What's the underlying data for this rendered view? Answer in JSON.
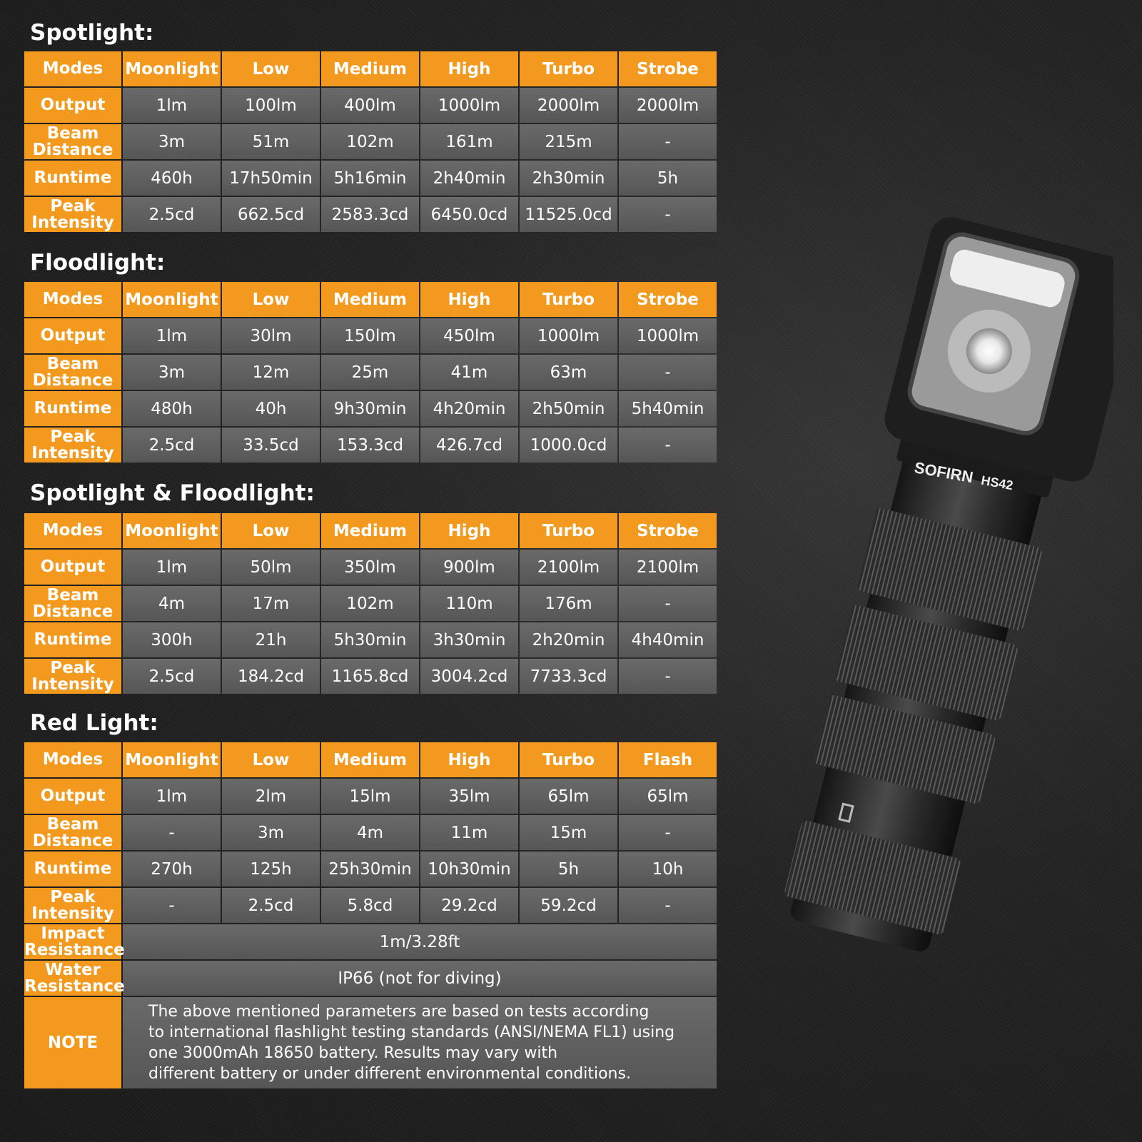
{
  "tables": [
    {
      "title": "Spotlight:",
      "header": [
        "Modes",
        "Moonlight",
        "Low",
        "Medium",
        "High",
        "Turbo",
        "Strobe"
      ],
      "rows": [
        {
          "label": "Output",
          "values": [
            "1lm",
            "100lm",
            "400lm",
            "1000lm",
            "2000lm",
            "2000lm"
          ]
        },
        {
          "label": "Beam Distance",
          "values": [
            "3m",
            "51m",
            "102m",
            "161m",
            "215m",
            "-"
          ]
        },
        {
          "label": "Runtime",
          "values": [
            "460h",
            "17h50min",
            "5h16min",
            "2h40min",
            "2h30min",
            "5h"
          ]
        },
        {
          "label": "Peak Intensity",
          "values": [
            "2.5cd",
            "662.5cd",
            "2583.3cd",
            "6450.0cd",
            "11525.0cd",
            "-"
          ]
        }
      ]
    },
    {
      "title": "Floodlight:",
      "header": [
        "Modes",
        "Moonlight",
        "Low",
        "Medium",
        "High",
        "Turbo",
        "Strobe"
      ],
      "rows": [
        {
          "label": "Output",
          "values": [
            "1lm",
            "30lm",
            "150lm",
            "450lm",
            "1000lm",
            "1000lm"
          ]
        },
        {
          "label": "Beam Distance",
          "values": [
            "3m",
            "12m",
            "25m",
            "41m",
            "63m",
            "-"
          ]
        },
        {
          "label": "Runtime",
          "values": [
            "480h",
            "40h",
            "9h30min",
            "4h20min",
            "2h50min",
            "5h40min"
          ]
        },
        {
          "label": "Peak Intensity",
          "values": [
            "2.5cd",
            "33.5cd",
            "153.3cd",
            "426.7cd",
            "1000.0cd",
            "-"
          ]
        }
      ]
    },
    {
      "title": "Spotlight & Floodlight:",
      "header": [
        "Modes",
        "Moonlight",
        "Low",
        "Medium",
        "High",
        "Turbo",
        "Strobe"
      ],
      "rows": [
        {
          "label": "Output",
          "values": [
            "1lm",
            "50lm",
            "350lm",
            "900lm",
            "2100lm",
            "2100lm"
          ]
        },
        {
          "label": "Beam Distance",
          "values": [
            "4m",
            "17m",
            "102m",
            "110m",
            "176m",
            "-"
          ]
        },
        {
          "label": "Runtime",
          "values": [
            "300h",
            "21h",
            "5h30min",
            "3h30min",
            "2h20min",
            "4h40min"
          ]
        },
        {
          "label": "Peak Intensity",
          "values": [
            "2.5cd",
            "184.2cd",
            "1165.8cd",
            "3004.2cd",
            "7733.3cd",
            "-"
          ]
        }
      ]
    },
    {
      "title": "Red Light:",
      "header": [
        "Modes",
        "Moonlight",
        "Low",
        "Medium",
        "High",
        "Turbo",
        "Flash"
      ],
      "rows": [
        {
          "label": "Output",
          "values": [
            "1lm",
            "2lm",
            "15lm",
            "35lm",
            "65lm",
            "65lm"
          ]
        },
        {
          "label": "Beam Distance",
          "values": [
            "-",
            "3m",
            "4m",
            "11m",
            "15m",
            "-"
          ]
        },
        {
          "label": "Runtime",
          "values": [
            "270h",
            "125h",
            "25h30min",
            "10h30min",
            "5h",
            "10h"
          ]
        },
        {
          "label": "Peak Intensity",
          "values": [
            "-",
            "2.5cd",
            "5.8cd",
            "29.2cd",
            "59.2cd",
            "-"
          ]
        }
      ],
      "extra": [
        {
          "label": "Impact Resistance",
          "value": "1m/3.28ft"
        },
        {
          "label": "Water Resistance",
          "value": "IP66 (not for diving)"
        }
      ],
      "note": {
        "label": "NOTE",
        "lines": [
          "The above mentioned parameters are based on tests according",
          "to international flashlight testing standards (ANSI/NEMA FL1) using",
          "one 3000mAh 18650 battery. Results may vary with",
          "different battery or under different environmental conditions."
        ]
      }
    }
  ],
  "product": {
    "brand": "SOFIRN",
    "model": "HS42"
  },
  "colors": {
    "header": "#f39a1e",
    "cell": "#5e5e5e",
    "background": "#262626"
  }
}
